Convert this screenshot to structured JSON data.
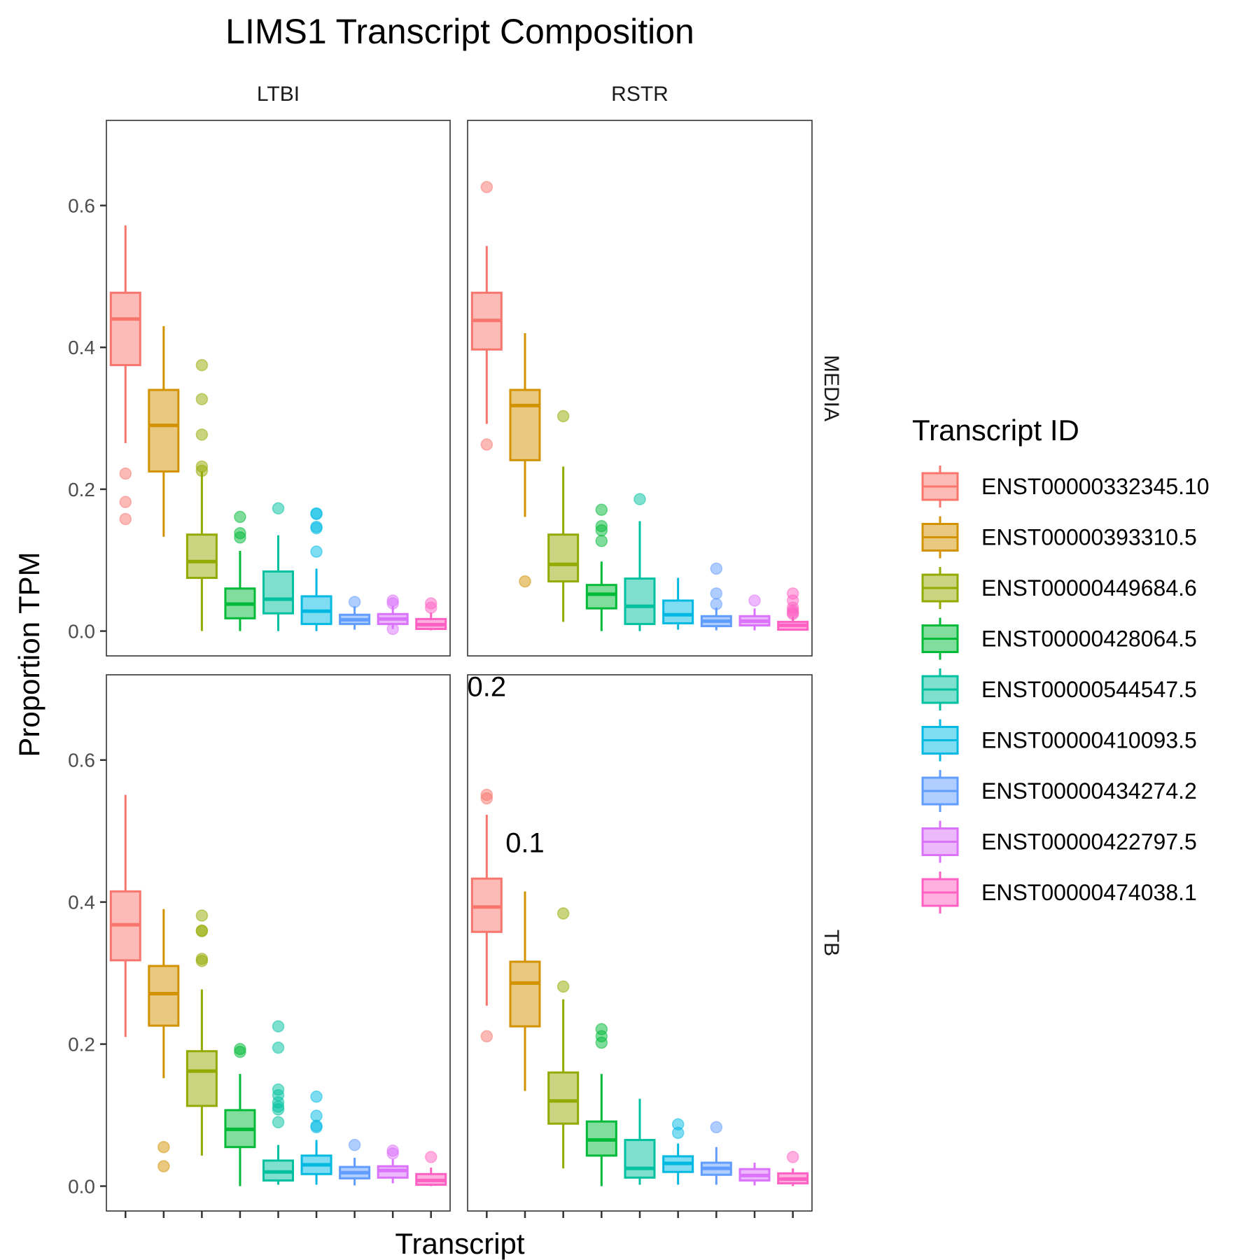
{
  "chart_data": {
    "type": "box",
    "title": "LIMS1 Transcript Composition",
    "xlabel": "Transcript",
    "ylabel": "Proportion TPM",
    "ylim": [
      -0.035,
      0.72
    ],
    "yticks": [
      0.0,
      0.2,
      0.4,
      0.6
    ],
    "ytick_labels": [
      "0.0",
      "0.2",
      "0.4",
      "0.6"
    ],
    "facet_cols": [
      "LTBI",
      "RSTR"
    ],
    "facet_rows": [
      "MEDIA",
      "TB"
    ],
    "legend": {
      "title": "Transcript ID",
      "position": "right",
      "entries": [
        {
          "name": "ENST00000332345.10",
          "color": "#F8766D"
        },
        {
          "name": "ENST00000393310.5",
          "color": "#D39200"
        },
        {
          "name": "ENST00000449684.6",
          "color": "#93AA00"
        },
        {
          "name": "ENST00000428064.5",
          "color": "#00BA38"
        },
        {
          "name": "ENST00000544547.5",
          "color": "#00C19F"
        },
        {
          "name": "ENST00000410093.5",
          "color": "#00B9E3"
        },
        {
          "name": "ENST00000434274.2",
          "color": "#619CFF"
        },
        {
          "name": "ENST00000422797.5",
          "color": "#DB72FB"
        },
        {
          "name": "ENST00000474038.1",
          "color": "#FF61C3"
        }
      ]
    },
    "annotations": [
      {
        "panel": "RSTR-TB",
        "text": "0.2",
        "x": 0.5,
        "y": 0.69
      },
      {
        "panel": "RSTR-TB",
        "text": "0.1",
        "x": 1.5,
        "y": 0.47
      }
    ],
    "panels": [
      {
        "col": "LTBI",
        "row": "MEDIA",
        "boxes": [
          {
            "wmin": 0.265,
            "q1": 0.375,
            "median": 0.44,
            "q3": 0.477,
            "wmax": 0.572,
            "outliers": [
              0.222,
              0.182,
              0.158
            ]
          },
          {
            "wmin": 0.133,
            "q1": 0.225,
            "median": 0.29,
            "q3": 0.34,
            "wmax": 0.43,
            "outliers": []
          },
          {
            "wmin": 0.0,
            "q1": 0.075,
            "median": 0.098,
            "q3": 0.136,
            "wmax": 0.225,
            "outliers": [
              0.375,
              0.327,
              0.277,
              0.232,
              0.226
            ]
          },
          {
            "wmin": 0.0,
            "q1": 0.018,
            "median": 0.038,
            "q3": 0.06,
            "wmax": 0.113,
            "outliers": [
              0.161,
              0.138,
              0.132
            ]
          },
          {
            "wmin": 0.0,
            "q1": 0.025,
            "median": 0.045,
            "q3": 0.084,
            "wmax": 0.135,
            "outliers": [
              0.173
            ]
          },
          {
            "wmin": 0.0,
            "q1": 0.01,
            "median": 0.028,
            "q3": 0.049,
            "wmax": 0.088,
            "outliers": [
              0.166,
              0.165,
              0.147,
              0.145,
              0.112
            ]
          },
          {
            "wmin": 0.002,
            "q1": 0.01,
            "median": 0.016,
            "q3": 0.023,
            "wmax": 0.035,
            "outliers": [
              0.041
            ]
          },
          {
            "wmin": 0.003,
            "q1": 0.01,
            "median": 0.017,
            "q3": 0.024,
            "wmax": 0.035,
            "outliers": [
              0.043,
              0.039,
              0.003
            ]
          },
          {
            "wmin": 0.001,
            "q1": 0.003,
            "median": 0.009,
            "q3": 0.017,
            "wmax": 0.026,
            "outliers": [
              0.039,
              0.033
            ]
          }
        ]
      },
      {
        "col": "RSTR",
        "row": "MEDIA",
        "boxes": [
          {
            "wmin": 0.292,
            "q1": 0.397,
            "median": 0.438,
            "q3": 0.477,
            "wmax": 0.543,
            "outliers": [
              0.626,
              0.263
            ]
          },
          {
            "wmin": 0.161,
            "q1": 0.241,
            "median": 0.318,
            "q3": 0.34,
            "wmax": 0.42,
            "outliers": [
              0.07
            ]
          },
          {
            "wmin": 0.013,
            "q1": 0.07,
            "median": 0.094,
            "q3": 0.136,
            "wmax": 0.232,
            "outliers": [
              0.303
            ]
          },
          {
            "wmin": 0.0,
            "q1": 0.032,
            "median": 0.052,
            "q3": 0.065,
            "wmax": 0.098,
            "outliers": [
              0.171,
              0.148,
              0.142,
              0.127
            ]
          },
          {
            "wmin": 0.0,
            "q1": 0.01,
            "median": 0.035,
            "q3": 0.074,
            "wmax": 0.155,
            "outliers": [
              0.186
            ]
          },
          {
            "wmin": 0.002,
            "q1": 0.011,
            "median": 0.023,
            "q3": 0.043,
            "wmax": 0.075,
            "outliers": []
          },
          {
            "wmin": 0.001,
            "q1": 0.007,
            "median": 0.014,
            "q3": 0.021,
            "wmax": 0.033,
            "outliers": [
              0.088,
              0.053,
              0.038
            ]
          },
          {
            "wmin": 0.001,
            "q1": 0.008,
            "median": 0.014,
            "q3": 0.021,
            "wmax": 0.032,
            "outliers": [
              0.043
            ]
          },
          {
            "wmin": 0.001,
            "q1": 0.002,
            "median": 0.008,
            "q3": 0.013,
            "wmax": 0.02,
            "outliers": [
              0.053,
              0.043,
              0.033,
              0.029,
              0.026,
              0.024
            ]
          }
        ]
      },
      {
        "col": "LTBI",
        "row": "TB",
        "boxes": [
          {
            "wmin": 0.21,
            "q1": 0.318,
            "median": 0.368,
            "q3": 0.415,
            "wmax": 0.551,
            "outliers": []
          },
          {
            "wmin": 0.152,
            "q1": 0.226,
            "median": 0.271,
            "q3": 0.31,
            "wmax": 0.39,
            "outliers": [
              0.055,
              0.028
            ]
          },
          {
            "wmin": 0.043,
            "q1": 0.113,
            "median": 0.162,
            "q3": 0.19,
            "wmax": 0.277,
            "outliers": [
              0.381,
              0.36,
              0.359,
              0.32,
              0.317
            ]
          },
          {
            "wmin": 0.0,
            "q1": 0.055,
            "median": 0.08,
            "q3": 0.107,
            "wmax": 0.158,
            "outliers": [
              0.193,
              0.189
            ]
          },
          {
            "wmin": 0.002,
            "q1": 0.008,
            "median": 0.02,
            "q3": 0.036,
            "wmax": 0.058,
            "outliers": [
              0.225,
              0.195,
              0.136,
              0.128,
              0.118,
              0.112,
              0.108,
              0.09
            ]
          },
          {
            "wmin": 0.002,
            "q1": 0.017,
            "median": 0.03,
            "q3": 0.043,
            "wmax": 0.065,
            "outliers": [
              0.126,
              0.099,
              0.085,
              0.083
            ]
          },
          {
            "wmin": 0.001,
            "q1": 0.011,
            "median": 0.019,
            "q3": 0.027,
            "wmax": 0.04,
            "outliers": [
              0.058
            ]
          },
          {
            "wmin": 0.004,
            "q1": 0.012,
            "median": 0.022,
            "q3": 0.028,
            "wmax": 0.038,
            "outliers": [
              0.05,
              0.046
            ]
          },
          {
            "wmin": 0.0,
            "q1": 0.002,
            "median": 0.008,
            "q3": 0.017,
            "wmax": 0.026,
            "outliers": [
              0.041
            ]
          }
        ]
      },
      {
        "col": "RSTR",
        "row": "TB",
        "boxes": [
          {
            "wmin": 0.254,
            "q1": 0.358,
            "median": 0.393,
            "q3": 0.433,
            "wmax": 0.523,
            "outliers": [
              0.551,
              0.546,
              0.211
            ]
          },
          {
            "wmin": 0.134,
            "q1": 0.225,
            "median": 0.286,
            "q3": 0.316,
            "wmax": 0.415,
            "outliers": []
          },
          {
            "wmin": 0.025,
            "q1": 0.088,
            "median": 0.12,
            "q3": 0.16,
            "wmax": 0.263,
            "outliers": [
              0.384,
              0.281
            ]
          },
          {
            "wmin": 0.0,
            "q1": 0.043,
            "median": 0.065,
            "q3": 0.091,
            "wmax": 0.158,
            "outliers": [
              0.221,
              0.211,
              0.202
            ]
          },
          {
            "wmin": 0.002,
            "q1": 0.012,
            "median": 0.025,
            "q3": 0.065,
            "wmax": 0.123,
            "outliers": []
          },
          {
            "wmin": 0.002,
            "q1": 0.02,
            "median": 0.032,
            "q3": 0.042,
            "wmax": 0.06,
            "outliers": [
              0.087,
              0.075
            ]
          },
          {
            "wmin": 0.002,
            "q1": 0.016,
            "median": 0.025,
            "q3": 0.033,
            "wmax": 0.055,
            "outliers": [
              0.083
            ]
          },
          {
            "wmin": 0.001,
            "q1": 0.008,
            "median": 0.015,
            "q3": 0.024,
            "wmax": 0.033,
            "outliers": []
          },
          {
            "wmin": 0.0,
            "q1": 0.004,
            "median": 0.01,
            "q3": 0.018,
            "wmax": 0.025,
            "outliers": [
              0.041
            ]
          }
        ]
      }
    ]
  }
}
